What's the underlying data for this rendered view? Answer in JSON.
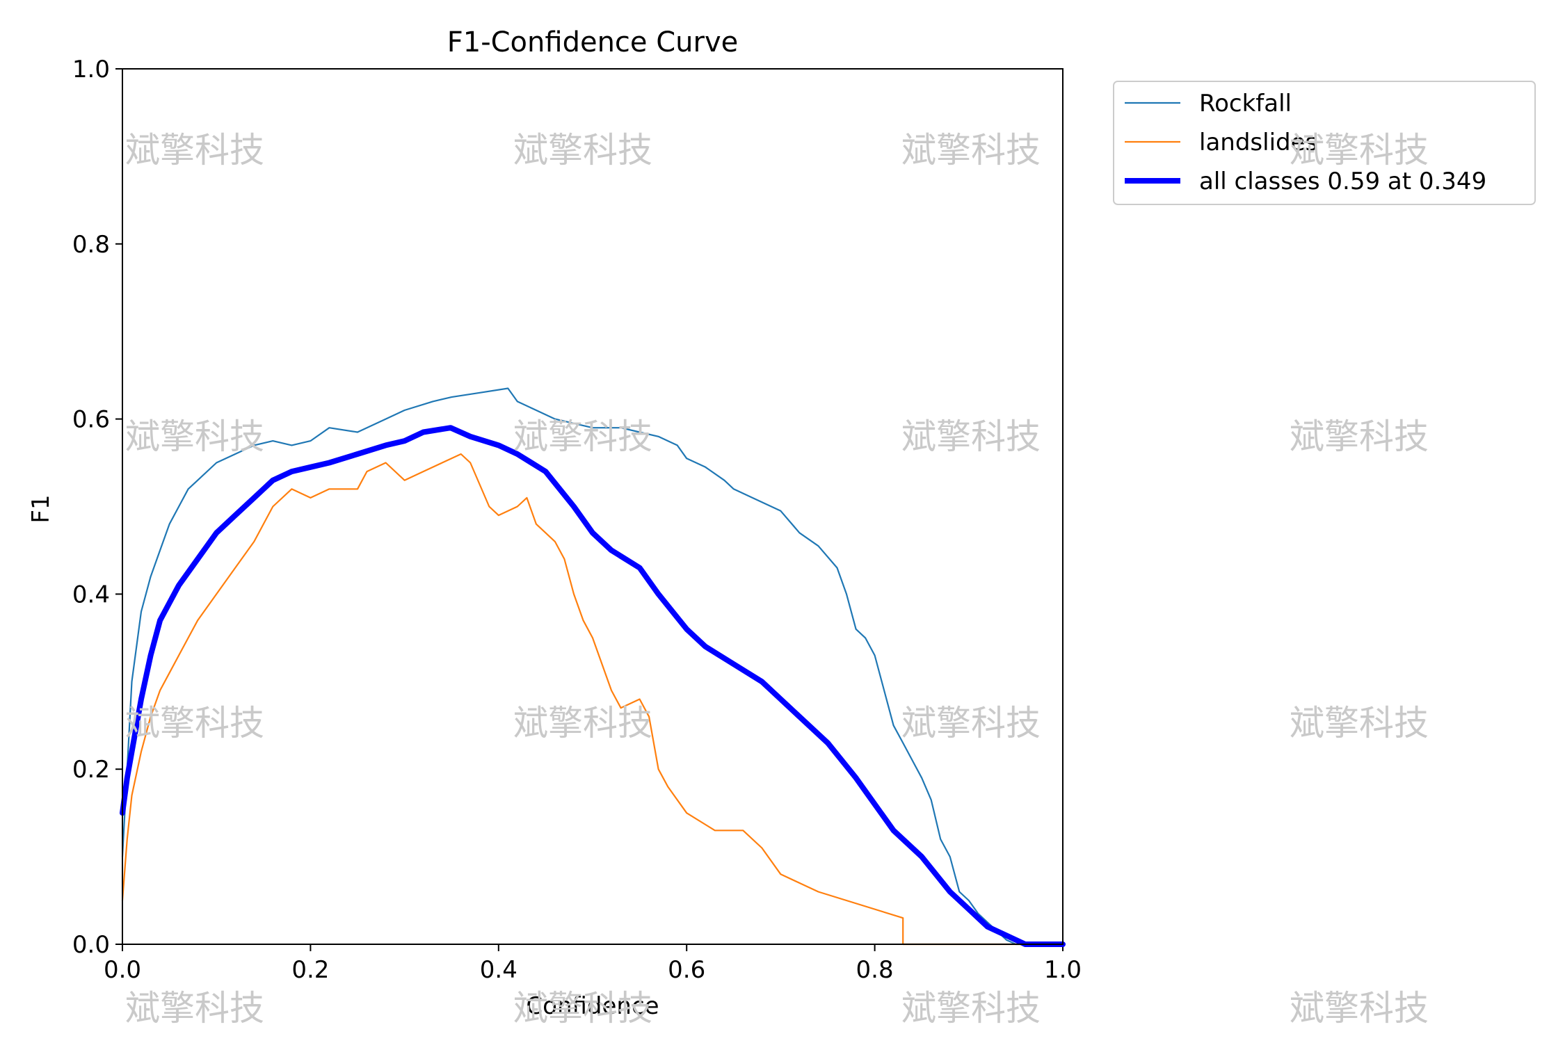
{
  "chart_data": {
    "type": "line",
    "title": "F1-Confidence Curve",
    "xlabel": "Confidence",
    "ylabel": "F1",
    "xlim": [
      0.0,
      1.0
    ],
    "ylim": [
      0.0,
      1.0
    ],
    "xticks": [
      "0.0",
      "0.2",
      "0.4",
      "0.6",
      "0.8",
      "1.0"
    ],
    "yticks": [
      "0.0",
      "0.2",
      "0.4",
      "0.6",
      "0.8",
      "1.0"
    ],
    "grid": false,
    "legend_position": "outside-top-right",
    "series": [
      {
        "name": "Rockfall",
        "color": "#1f77b4",
        "linewidth": "thin",
        "x": [
          0.0,
          0.005,
          0.01,
          0.02,
          0.03,
          0.04,
          0.05,
          0.06,
          0.07,
          0.08,
          0.1,
          0.12,
          0.14,
          0.16,
          0.18,
          0.2,
          0.22,
          0.25,
          0.28,
          0.3,
          0.33,
          0.35,
          0.38,
          0.41,
          0.42,
          0.44,
          0.46,
          0.5,
          0.53,
          0.55,
          0.57,
          0.59,
          0.6,
          0.62,
          0.64,
          0.65,
          0.67,
          0.7,
          0.72,
          0.74,
          0.76,
          0.77,
          0.78,
          0.79,
          0.8,
          0.81,
          0.82,
          0.83,
          0.84,
          0.85,
          0.86,
          0.87,
          0.88,
          0.89,
          0.9,
          0.91,
          0.92,
          0.93,
          0.94,
          0.95,
          1.0
        ],
        "values": [
          0.1,
          0.2,
          0.3,
          0.38,
          0.42,
          0.45,
          0.48,
          0.5,
          0.52,
          0.53,
          0.55,
          0.56,
          0.57,
          0.575,
          0.57,
          0.575,
          0.59,
          0.585,
          0.6,
          0.61,
          0.62,
          0.625,
          0.63,
          0.635,
          0.62,
          0.61,
          0.6,
          0.59,
          0.59,
          0.585,
          0.58,
          0.57,
          0.555,
          0.545,
          0.53,
          0.52,
          0.51,
          0.495,
          0.47,
          0.455,
          0.43,
          0.4,
          0.36,
          0.35,
          0.33,
          0.29,
          0.25,
          0.23,
          0.21,
          0.19,
          0.165,
          0.12,
          0.1,
          0.06,
          0.05,
          0.035,
          0.025,
          0.015,
          0.005,
          0.0,
          0.0
        ]
      },
      {
        "name": "landslides",
        "color": "#ff7f0e",
        "linewidth": "thin",
        "x": [
          0.0,
          0.005,
          0.01,
          0.02,
          0.03,
          0.04,
          0.05,
          0.06,
          0.07,
          0.08,
          0.1,
          0.12,
          0.14,
          0.16,
          0.18,
          0.2,
          0.22,
          0.25,
          0.26,
          0.28,
          0.3,
          0.32,
          0.34,
          0.36,
          0.37,
          0.39,
          0.4,
          0.42,
          0.43,
          0.44,
          0.46,
          0.47,
          0.48,
          0.49,
          0.5,
          0.51,
          0.52,
          0.53,
          0.55,
          0.56,
          0.57,
          0.58,
          0.6,
          0.63,
          0.66,
          0.68,
          0.7,
          0.74,
          0.83,
          0.83,
          1.0
        ],
        "values": [
          0.05,
          0.12,
          0.17,
          0.22,
          0.26,
          0.29,
          0.31,
          0.33,
          0.35,
          0.37,
          0.4,
          0.43,
          0.46,
          0.5,
          0.52,
          0.51,
          0.52,
          0.52,
          0.54,
          0.55,
          0.53,
          0.54,
          0.55,
          0.56,
          0.55,
          0.5,
          0.49,
          0.5,
          0.51,
          0.48,
          0.46,
          0.44,
          0.4,
          0.37,
          0.35,
          0.32,
          0.29,
          0.27,
          0.28,
          0.26,
          0.2,
          0.18,
          0.15,
          0.13,
          0.13,
          0.11,
          0.08,
          0.06,
          0.03,
          0.0,
          0.0
        ]
      },
      {
        "name": "all classes 0.59 at 0.349",
        "color": "#0000ff",
        "linewidth": "thick",
        "x": [
          0.0,
          0.005,
          0.01,
          0.02,
          0.03,
          0.04,
          0.05,
          0.06,
          0.08,
          0.1,
          0.12,
          0.14,
          0.16,
          0.18,
          0.2,
          0.22,
          0.25,
          0.28,
          0.3,
          0.32,
          0.349,
          0.37,
          0.4,
          0.42,
          0.45,
          0.48,
          0.5,
          0.52,
          0.55,
          0.57,
          0.6,
          0.62,
          0.65,
          0.68,
          0.7,
          0.72,
          0.75,
          0.78,
          0.8,
          0.82,
          0.85,
          0.88,
          0.9,
          0.92,
          0.94,
          0.96,
          1.0
        ],
        "values": [
          0.15,
          0.19,
          0.22,
          0.28,
          0.33,
          0.37,
          0.39,
          0.41,
          0.44,
          0.47,
          0.49,
          0.51,
          0.53,
          0.54,
          0.545,
          0.55,
          0.56,
          0.57,
          0.575,
          0.585,
          0.59,
          0.58,
          0.57,
          0.56,
          0.54,
          0.5,
          0.47,
          0.45,
          0.43,
          0.4,
          0.36,
          0.34,
          0.32,
          0.3,
          0.28,
          0.26,
          0.23,
          0.19,
          0.16,
          0.13,
          0.1,
          0.06,
          0.04,
          0.02,
          0.01,
          0.0,
          0.0
        ]
      }
    ]
  },
  "watermarks": [
    "斌擎科技",
    "斌擎科技",
    "斌擎科技",
    "斌擎科技",
    "斌擎科技",
    "斌擎科技",
    "斌擎科技",
    "斌擎科技",
    "斌擎科技",
    "斌擎科技",
    "斌擎科技",
    "斌擎科技",
    "斌擎科技",
    "斌擎科技",
    "斌擎科技",
    "斌擎科技"
  ]
}
